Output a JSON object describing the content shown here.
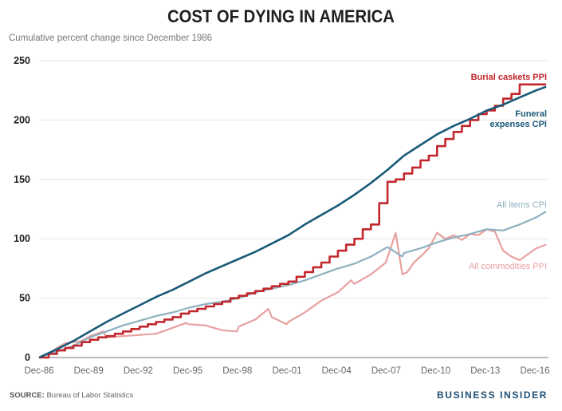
{
  "title": "COST OF DYING IN AMERICA",
  "subtitle": "Cumulative percent change since December 1986",
  "source_label": "SOURCE:",
  "source_text": "Bureau of Labor Statistics",
  "brand": "BUSINESS INSIDER",
  "chart_data": {
    "type": "line",
    "title": "COST OF DYING IN AMERICA",
    "subtitle": "Cumulative percent change since December 1986",
    "xlabel": "",
    "ylabel": "Cumulative percent change since December 1986",
    "ylim": [
      0,
      250
    ],
    "xlim": [
      1986.92,
      2017.6
    ],
    "yticks": [
      0,
      50,
      100,
      150,
      200,
      250
    ],
    "xticks": [
      {
        "x": 1986.92,
        "label": "Dec-86"
      },
      {
        "x": 1989.92,
        "label": "Dec-89"
      },
      {
        "x": 1992.92,
        "label": "Dec-92"
      },
      {
        "x": 1995.92,
        "label": "Dec-95"
      },
      {
        "x": 1998.92,
        "label": "Dec-98"
      },
      {
        "x": 2001.92,
        "label": "Dec-01"
      },
      {
        "x": 2004.92,
        "label": "Dec-04"
      },
      {
        "x": 2007.92,
        "label": "Dec-07"
      },
      {
        "x": 2010.92,
        "label": "Dec-10"
      },
      {
        "x": 2013.92,
        "label": "Dec-13"
      },
      {
        "x": 2016.92,
        "label": "Dec-16"
      }
    ],
    "grid": true,
    "legend": "inline-right",
    "series": [
      {
        "name": "Burial caskets PPI",
        "color": "#c1272d",
        "step": true,
        "x": [
          1986.92,
          1987.5,
          1988,
          1988.5,
          1989,
          1989.5,
          1990,
          1990.5,
          1991,
          1991.5,
          1992,
          1992.5,
          1993,
          1993.5,
          1994,
          1994.5,
          1995,
          1995.5,
          1996,
          1996.5,
          1997,
          1997.5,
          1998,
          1998.5,
          1999,
          1999.5,
          2000,
          2000.5,
          2001,
          2001.5,
          2002,
          2002.5,
          2003,
          2003.5,
          2004,
          2004.5,
          2005,
          2005.5,
          2006,
          2006.5,
          2007,
          2007.5,
          2008,
          2008.5,
          2009,
          2009.5,
          2010,
          2010.5,
          2011,
          2011.5,
          2012,
          2012.5,
          2013,
          2013.5,
          2014,
          2014.5,
          2015,
          2015.5,
          2016,
          2016.5,
          2017,
          2017.6
        ],
        "y": [
          0,
          3,
          6,
          8,
          10,
          13,
          15,
          17,
          18,
          20,
          22,
          24,
          26,
          28,
          30,
          32,
          34,
          37,
          39,
          41,
          43,
          45,
          47,
          50,
          52,
          54,
          56,
          58,
          60,
          62,
          64,
          68,
          72,
          76,
          80,
          85,
          90,
          95,
          100,
          108,
          112,
          130,
          148,
          150,
          155,
          160,
          166,
          170,
          178,
          184,
          190,
          195,
          200,
          205,
          208,
          212,
          218,
          222,
          230,
          230,
          230,
          230
        ]
      },
      {
        "name": "Funeral expenses CPI",
        "color": "#1a5a78",
        "x": [
          1986.92,
          1988,
          1989,
          1990,
          1991,
          1992,
          1993,
          1994,
          1995,
          1996,
          1997,
          1998,
          1999,
          2000,
          2001,
          2002,
          2003,
          2004,
          2005,
          2006,
          2007,
          2008,
          2009,
          2010,
          2011,
          2012,
          2013,
          2014,
          2015,
          2016,
          2017,
          2017.6
        ],
        "y": [
          0,
          7,
          14,
          22,
          30,
          37,
          44,
          51,
          57,
          64,
          71,
          77,
          83,
          89,
          96,
          103,
          112,
          120,
          128,
          137,
          147,
          158,
          170,
          179,
          188,
          195,
          201,
          208,
          213,
          219,
          225,
          228
        ]
      },
      {
        "name": "All items CPI",
        "color": "#8fb0bf",
        "x": [
          1986.92,
          1988,
          1989,
          1990,
          1991,
          1992,
          1993,
          1994,
          1995,
          1996,
          1997,
          1998,
          1999,
          2000,
          2001,
          2002,
          2003,
          2004,
          2005,
          2006,
          2007,
          2008,
          2008.9,
          2009,
          2010,
          2011,
          2012,
          2013,
          2014,
          2015,
          2016,
          2017,
          2017.6
        ],
        "y": [
          0,
          5,
          10,
          17,
          22,
          27,
          31,
          35,
          38,
          42,
          45,
          47,
          50,
          55,
          58,
          61,
          65,
          70,
          75,
          79,
          85,
          93,
          85,
          88,
          92,
          97,
          101,
          104,
          108,
          107,
          112,
          118,
          123
        ]
      },
      {
        "name": "All commodities PPI",
        "color": "#e8a0a0",
        "x": [
          1986.92,
          1987.5,
          1988,
          1988.5,
          1989,
          1989.5,
          1990,
          1990.8,
          1991,
          1992,
          1993,
          1994,
          1995,
          1995.8,
          1996,
          1997,
          1998,
          1998.9,
          1999,
          2000,
          2000.8,
          2001,
          2001.9,
          2002,
          2003,
          2004,
          2005,
          2005.8,
          2006,
          2007,
          2007.9,
          2008.5,
          2008.9,
          2009.2,
          2009.6,
          2010,
          2010.5,
          2011,
          2011.5,
          2012,
          2012.5,
          2013,
          2013.5,
          2014,
          2014.5,
          2015,
          2015.5,
          2016,
          2016.5,
          2017,
          2017.6
        ],
        "y": [
          0,
          3,
          8,
          12,
          13,
          14,
          18,
          22,
          17,
          18,
          19,
          20,
          25,
          29,
          28,
          27,
          23,
          22,
          26,
          32,
          41,
          34,
          28,
          30,
          38,
          48,
          55,
          65,
          62,
          70,
          80,
          105,
          70,
          72,
          80,
          85,
          92,
          105,
          100,
          103,
          99,
          104,
          103,
          108,
          106,
          90,
          85,
          82,
          87,
          92,
          95
        ]
      }
    ],
    "annotations": [
      {
        "text": "Burial caskets PPI",
        "series": "Burial caskets PPI"
      },
      {
        "text": "Funeral",
        "series": "Funeral expenses CPI"
      },
      {
        "text": "expenses CPI",
        "series": "Funeral expenses CPI"
      },
      {
        "text": "All items CPI",
        "series": "All items CPI"
      },
      {
        "text": "All commodities PPI",
        "series": "All commodities PPI"
      }
    ]
  }
}
